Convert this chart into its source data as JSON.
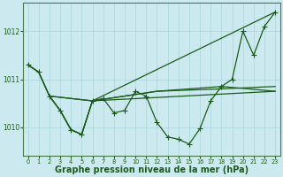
{
  "background_color": "#cde9f0",
  "grid_color": "#aad4dc",
  "line_color": "#1a5c1a",
  "marker_color": "#1a5c1a",
  "xlabel": "Graphe pression niveau de la mer (hPa)",
  "xlabel_fontsize": 7.0,
  "xlim": [
    -0.5,
    23.5
  ],
  "ylim": [
    1009.4,
    1012.6
  ],
  "yticks": [
    1010,
    1011,
    1012
  ],
  "xticks": [
    0,
    1,
    2,
    3,
    4,
    5,
    6,
    7,
    8,
    9,
    10,
    11,
    12,
    13,
    14,
    15,
    16,
    17,
    18,
    19,
    20,
    21,
    22,
    23
  ],
  "line1_x": [
    0,
    1,
    2,
    3,
    4,
    5,
    6,
    7,
    8,
    9,
    10,
    11,
    12,
    13,
    14,
    15,
    16,
    17,
    18,
    19,
    20,
    21,
    22,
    23
  ],
  "line1_y": [
    1011.3,
    1011.15,
    1010.65,
    1010.35,
    1009.95,
    1009.85,
    1010.55,
    1010.6,
    1010.3,
    1010.35,
    1010.75,
    1010.65,
    1010.1,
    1009.8,
    1009.75,
    1009.65,
    1009.97,
    1010.55,
    1010.85,
    1011.0,
    1012.0,
    1011.5,
    1012.1,
    1012.4
  ],
  "line2_x": [
    0,
    1,
    2,
    3,
    4,
    5,
    6,
    23
  ],
  "line2_y": [
    1011.3,
    1011.15,
    1010.65,
    1010.35,
    1009.95,
    1009.85,
    1010.55,
    1012.4
  ],
  "line3_x": [
    0,
    1,
    2,
    3,
    4,
    5,
    6,
    23
  ],
  "line3_y": [
    1011.3,
    1011.15,
    1010.65,
    1010.35,
    1009.95,
    1009.85,
    1010.55,
    1010.75
  ],
  "line4_x": [
    2,
    6,
    12,
    18,
    23
  ],
  "line4_y": [
    1010.65,
    1010.55,
    1010.75,
    1010.8,
    1010.85
  ],
  "line5_x": [
    2,
    6,
    12,
    18,
    23
  ],
  "line5_y": [
    1010.65,
    1010.55,
    1010.75,
    1010.85,
    1010.75
  ]
}
